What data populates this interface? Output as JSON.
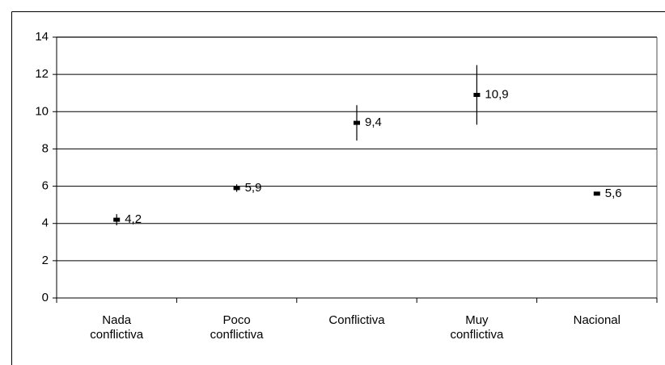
{
  "chart_data": {
    "type": "errorbar",
    "categories": [
      [
        "Nada",
        "conflictiva"
      ],
      [
        "Poco",
        "conflictiva"
      ],
      [
        "Conflictiva"
      ],
      [
        "Muy",
        "conflictiva"
      ],
      [
        "Nacional"
      ]
    ],
    "values": [
      4.2,
      5.9,
      9.4,
      10.9,
      5.6
    ],
    "value_labels": [
      "4,2",
      "5,9",
      "9,4",
      "10,9",
      "5,6"
    ],
    "errors": [
      0.3,
      0.2,
      0.95,
      1.6,
      0.1
    ],
    "color": "#000000",
    "ylim": [
      0,
      14
    ],
    "yticks": [
      0,
      2,
      4,
      6,
      8,
      10,
      12,
      14
    ],
    "grid": true
  }
}
